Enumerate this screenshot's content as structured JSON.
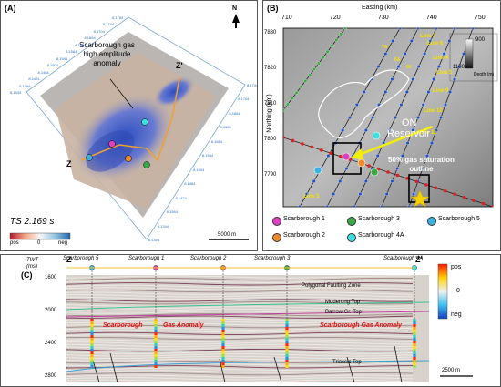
{
  "panelA": {
    "label": "(A)",
    "north": "N",
    "anomaly_label_line1": "Scarborough gas",
    "anomaly_label_line2": "high amplitude",
    "anomaly_label_line3": "anomaly",
    "z": "Z",
    "z_prime": "Z'",
    "time_label": "TS 2.169 s",
    "colorbar": {
      "pos": "pos",
      "zero": "0",
      "neg": "neg"
    },
    "scale": "5000 m",
    "frame_ticks_left": [
      "8,1344",
      "8,1384",
      "8,1424",
      "8,1464",
      "8,1504",
      "8,1544",
      "8,1584",
      "8,1624",
      "8,1664",
      "8,1704",
      "8,1744",
      "8,1784"
    ],
    "frame_ticks_right": [
      "8,1744",
      "8,1704",
      "8,1664",
      "8,1624",
      "8,1584",
      "8,1544",
      "8,1504",
      "8,1464",
      "8,1424",
      "8,1384",
      "8,1344",
      "8,1304"
    ]
  },
  "panelB": {
    "label": "(B)",
    "x_title": "Easting (km)",
    "x_ticks": [
      "710",
      "720",
      "730",
      "740",
      "750"
    ],
    "y_title": "Northing (km)",
    "y_ticks": [
      "7830",
      "7820",
      "7810",
      "7800",
      "7790"
    ],
    "depth_bar": {
      "top": "900",
      "bottom": "1100",
      "label": "Depth (m)"
    },
    "lines": [
      "Line 7",
      "Line 6",
      "Line 4",
      "Line 5",
      "Line 9",
      "Line 10",
      "Line 11",
      "Line 3"
    ],
    "line_tags": [
      "7A",
      "6A",
      "4A"
    ],
    "on_reservoir_line1": "ON",
    "on_reservoir_line2": "Reservoir",
    "saturation_line1": "50% gas saturation",
    "saturation_line2": "outline"
  },
  "legend": [
    {
      "name": "Scarborough 1",
      "color": "#e040c0"
    },
    {
      "name": "Scarborough 3",
      "color": "#3aa845"
    },
    {
      "name": "Scarborough 5",
      "color": "#3bb3e0"
    },
    {
      "name": "Scarborough 2",
      "color": "#f08a2a"
    },
    {
      "name": "Scarborough 4A",
      "color": "#3de0e0"
    }
  ],
  "panelC": {
    "label": "(C)",
    "z": "Z",
    "z_prime": "Z'",
    "twt": "TWT",
    "ms": "(ms)",
    "y_ticks": [
      "1600",
      "2000",
      "2400",
      "2800"
    ],
    "well_labels": [
      "Scarborough 5",
      "Scarborough 1",
      "Scarborough 2",
      "Scarborough 3",
      "Scarborough 4A"
    ],
    "horizons": [
      "Polygonal Faulting Zone",
      "Muderong Top",
      "Barrow Gr. Top",
      "Triassic Top"
    ],
    "anomaly_labels": [
      "Scarborough",
      "Gas Anomaly",
      "Scarborough Gas Anomaly"
    ],
    "colorbar": {
      "pos": "pos",
      "zero": "0",
      "neg": "neg"
    },
    "scale": "2500 m"
  }
}
